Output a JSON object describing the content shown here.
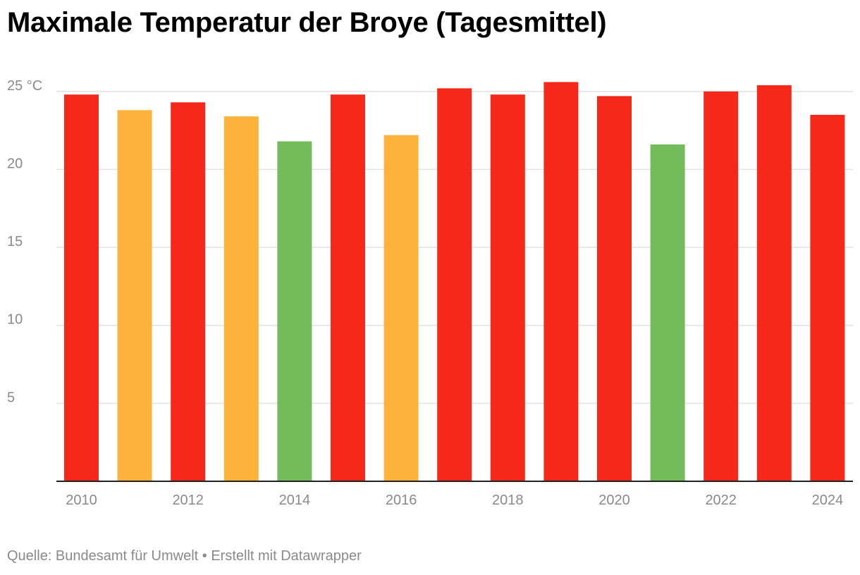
{
  "chart_data": {
    "type": "bar",
    "title": "Maximale Temperatur der Broye (Tagesmittel)",
    "xlabel": "",
    "ylabel": "°C",
    "ylim": [
      0,
      25
    ],
    "y_ticks": [
      5,
      10,
      15,
      20,
      25
    ],
    "y_tick_labels": [
      "5",
      "10",
      "15",
      "20",
      "25 °C"
    ],
    "grid": true,
    "categories": [
      "2010",
      "2011",
      "2012",
      "2013",
      "2014",
      "2015",
      "2016",
      "2017",
      "2018",
      "2019",
      "2020",
      "2021",
      "2022",
      "2023",
      "2024"
    ],
    "x_tick_labels": [
      "2010",
      "2012",
      "2014",
      "2016",
      "2018",
      "2020",
      "2022",
      "2024"
    ],
    "values": [
      24.8,
      23.8,
      24.3,
      23.4,
      21.8,
      24.8,
      22.2,
      25.2,
      24.8,
      25.6,
      24.7,
      21.6,
      25.0,
      25.4,
      23.5
    ],
    "bar_colors": [
      "#f5281a",
      "#fdb23b",
      "#f5281a",
      "#fdb23b",
      "#74bc5a",
      "#f5281a",
      "#fdb23b",
      "#f5281a",
      "#f5281a",
      "#f5281a",
      "#f5281a",
      "#74bc5a",
      "#f5281a",
      "#f5281a",
      "#f5281a"
    ]
  },
  "footer": {
    "source_text": "Quelle: Bundesamt für Umwelt • Erstellt mit Datawrapper"
  },
  "colors": {
    "red": "#f5281a",
    "orange": "#fdb23b",
    "green": "#74bc5a",
    "grid": "#e2e2e2",
    "axis": "#222222",
    "tick_text": "#8a8a8a"
  }
}
